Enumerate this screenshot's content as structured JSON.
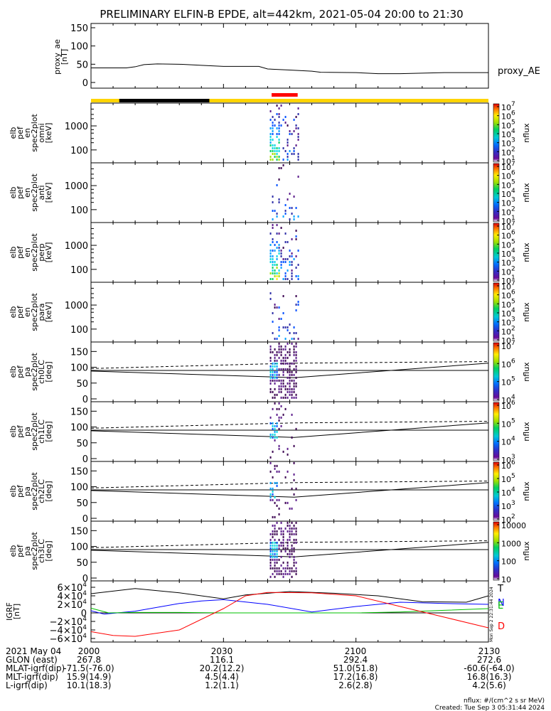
{
  "title": "PRELIMINARY ELFIN-B EPDE, alt=442km, 2021-05-04 20:00 to 21:30",
  "colors": {
    "orbit_bar_yellow": "#ffd400",
    "orbit_bar_black": "#000000",
    "science_zone_red": "#ff0000",
    "igrf_T": "#000000",
    "igrf_N": "#0000ff",
    "igrf_E": "#00c000",
    "igrf_D": "#ff0000"
  },
  "chart_data": [
    {
      "type": "line",
      "name": "proxy_ae",
      "ylabel_lines": [
        "proxy_ae",
        "[nT]"
      ],
      "ylim": [
        0,
        150
      ],
      "ytick_labels": [
        "0",
        "50",
        "100",
        "150"
      ],
      "ytick_values": [
        0,
        50,
        100,
        150
      ],
      "legend": "proxy_AE",
      "x_minutes": [
        0,
        8,
        10,
        12,
        15,
        20,
        25,
        30,
        38,
        40,
        45,
        50,
        52,
        60,
        65,
        70,
        80,
        90
      ],
      "values": [
        40,
        40,
        43,
        49,
        51,
        50,
        47,
        44,
        44,
        37,
        34,
        31,
        28,
        27,
        24,
        24,
        27,
        27
      ]
    },
    {
      "type": "heatmap",
      "name": "omni",
      "ylabel_lines": [
        "elb",
        "pef",
        "en",
        "spec2plot",
        "omni",
        "[keV]"
      ],
      "ytick_labels": [
        "100",
        "1000"
      ],
      "ytick_values": [
        100,
        1000
      ],
      "colorbar_label": "nflux",
      "colorbar_ticks": [
        "10",
        "10",
        "10",
        "10",
        "10",
        "10",
        "10"
      ],
      "colorbar_exps": [
        "1",
        "2",
        "3",
        "4",
        "5",
        "6",
        "7"
      ]
    },
    {
      "type": "heatmap",
      "name": "anti",
      "ylabel_lines": [
        "elb",
        "pef",
        "en",
        "spec2plot",
        "anti",
        "[keV]"
      ],
      "ytick_labels": [
        "100",
        "1000"
      ],
      "ytick_values": [
        100,
        1000
      ],
      "colorbar_label": "nflux",
      "colorbar_ticks": [
        "10",
        "10",
        "10",
        "10",
        "10",
        "10",
        "10"
      ],
      "colorbar_exps": [
        "1",
        "2",
        "3",
        "4",
        "5",
        "6",
        "7"
      ]
    },
    {
      "type": "heatmap",
      "name": "perp",
      "ylabel_lines": [
        "elb",
        "pef",
        "en",
        "spec2plot",
        "perp",
        "[keV]"
      ],
      "ytick_labels": [
        "100",
        "1000"
      ],
      "ytick_values": [
        100,
        1000
      ],
      "colorbar_label": "nflux",
      "colorbar_ticks": [
        "10",
        "10",
        "10",
        "10",
        "10",
        "10",
        "10"
      ],
      "colorbar_exps": [
        "1",
        "2",
        "3",
        "4",
        "5",
        "6",
        "7"
      ]
    },
    {
      "type": "heatmap",
      "name": "para",
      "ylabel_lines": [
        "elb",
        "pef",
        "en",
        "spec2plot",
        "para",
        "[keV]"
      ],
      "ytick_labels": [
        "100",
        "1000"
      ],
      "ytick_values": [
        100,
        1000
      ],
      "colorbar_label": "nflux",
      "colorbar_ticks": [
        "10",
        "10",
        "10",
        "10",
        "10",
        "10",
        "10"
      ],
      "colorbar_exps": [
        "1",
        "2",
        "3",
        "4",
        "5",
        "6",
        "7"
      ]
    },
    {
      "type": "heatmap",
      "name": "ch0LC",
      "ylabel_lines": [
        "elb",
        "pef",
        "pa",
        "spec2plot",
        "ch0LC",
        "[deg]"
      ],
      "ytick_labels": [
        "0",
        "50",
        "100",
        "150"
      ],
      "ytick_values": [
        0,
        50,
        100,
        150
      ],
      "colorbar_label": "nflux",
      "colorbar_ticks": [
        "10",
        "10",
        "10",
        "10"
      ],
      "colorbar_exps": [
        "4",
        "5",
        "6",
        "7"
      ]
    },
    {
      "type": "heatmap",
      "name": "ch1LC",
      "ylabel_lines": [
        "elb",
        "pef",
        "pa",
        "spec2plot",
        "ch1LC",
        "[deg]"
      ],
      "ytick_labels": [
        "0",
        "50",
        "100",
        "150"
      ],
      "ytick_values": [
        0,
        50,
        100,
        150
      ],
      "colorbar_label": "nflux",
      "colorbar_ticks": [
        "10",
        "10",
        "10",
        "10"
      ],
      "colorbar_exps": [
        "3",
        "4",
        "5",
        "6"
      ]
    },
    {
      "type": "heatmap",
      "name": "ch2LC",
      "ylabel_lines": [
        "elb",
        "pef",
        "pa",
        "spec2plot",
        "ch2LC",
        "[deg]"
      ],
      "ytick_labels": [
        "0",
        "50",
        "100",
        "150"
      ],
      "ytick_values": [
        0,
        50,
        100,
        150
      ],
      "colorbar_label": "nflux",
      "colorbar_ticks": [
        "10",
        "10",
        "10",
        "10",
        "10"
      ],
      "colorbar_exps": [
        "2",
        "3",
        "4",
        "5",
        "6"
      ]
    },
    {
      "type": "heatmap",
      "name": "ch3LC",
      "ylabel_lines": [
        "elb",
        "pef",
        "pa",
        "spec2plot",
        "ch3LC",
        "[deg]"
      ],
      "ytick_labels": [
        "0",
        "50",
        "100",
        "150"
      ],
      "ytick_values": [
        0,
        50,
        100,
        150
      ],
      "colorbar_label": "nflux",
      "colorbar_ticks": [
        "10",
        "100",
        "1000",
        "10000"
      ],
      "colorbar_exps": [
        "",
        "",
        "",
        ""
      ]
    },
    {
      "type": "line",
      "name": "IGRF",
      "ylabel_lines": [
        "IGRF",
        "[nT]"
      ],
      "ylim": [
        -60000,
        60000
      ],
      "ytick_mantissas": [
        "−6×10",
        "−4×10",
        "−2×10",
        "0",
        "2×10",
        "4×10",
        "6×10"
      ],
      "ytick_exps": [
        "4",
        "4",
        "4",
        "",
        "4",
        "4",
        "4"
      ],
      "ytick_values": [
        -60000,
        -40000,
        -20000,
        0,
        20000,
        40000,
        60000
      ],
      "series": [
        {
          "name": "T",
          "x_minutes": [
            0,
            10,
            20,
            30,
            35,
            45,
            55,
            65,
            75,
            85,
            90
          ],
          "values": [
            45000,
            57000,
            47000,
            33000,
            42000,
            50000,
            46000,
            40000,
            26000,
            25000,
            40000
          ]
        },
        {
          "name": "N",
          "x_minutes": [
            0,
            3,
            10,
            20,
            25,
            30,
            40,
            50,
            60,
            70,
            80,
            90
          ],
          "values": [
            5000,
            -3000,
            4000,
            22000,
            28000,
            31000,
            20000,
            2000,
            15000,
            25000,
            22000,
            20000
          ]
        },
        {
          "name": "E",
          "x_minutes": [
            0,
            4,
            10,
            20,
            30,
            40,
            50,
            60,
            70,
            80,
            90
          ],
          "values": [
            11000,
            0,
            1000,
            1000,
            0,
            0,
            0,
            0,
            2000,
            6000,
            10000
          ]
        },
        {
          "name": "D",
          "x_minutes": [
            0,
            5,
            10,
            20,
            30,
            35,
            40,
            50,
            60,
            70,
            80,
            90
          ],
          "values": [
            -44000,
            -53000,
            -55000,
            -40000,
            10000,
            40000,
            48000,
            47000,
            40000,
            15000,
            -10000,
            -35000
          ]
        }
      ]
    }
  ],
  "footer": {
    "rows": [
      {
        "label": "2021 May 04",
        "values": [
          "2000",
          "2030",
          "2100",
          "2130"
        ]
      },
      {
        "label": "GLON (east)",
        "values": [
          "267.8",
          "116.1",
          "292.4",
          "272.6"
        ]
      },
      {
        "label": "MLAT-igrf(dip)",
        "values": [
          "-71.5(-76.0)",
          "20.2(12.2)",
          "51.0(51.8)",
          "-60.6(-64.0)"
        ]
      },
      {
        "label": "MLT-igrf(dip)",
        "values": [
          "15.9(14.9)",
          "4.5(4.4)",
          "17.2(16.8)",
          "16.8(16.3)"
        ]
      },
      {
        "label": "L-igrf(dip)",
        "values": [
          "10.1(18.3)",
          "1.2(1.1)",
          "2.6(2.8)",
          "4.2(5.6)"
        ]
      }
    ],
    "units_note": "nflux: #/(cm^2 s sr MeV)",
    "created": "Created: Tue Sep  3 05:31:44 2024",
    "side_stamp": "Mon Sep  2 22:31:44 2024"
  }
}
